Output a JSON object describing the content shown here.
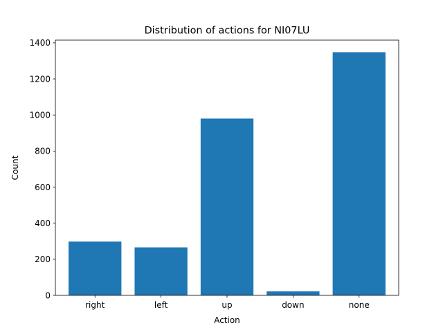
{
  "chart_data": {
    "type": "bar",
    "title": "Distribution of actions for NI07LU",
    "xlabel": "Action",
    "ylabel": "Count",
    "categories": [
      "right",
      "left",
      "up",
      "down",
      "none"
    ],
    "values": [
      298,
      266,
      980,
      22,
      1348
    ],
    "ylim": [
      0,
      1415
    ],
    "yticks": [
      0,
      200,
      400,
      600,
      800,
      1000,
      1200,
      1400
    ],
    "bar_color": "#1f77b4",
    "grid": false,
    "legend": "none"
  }
}
